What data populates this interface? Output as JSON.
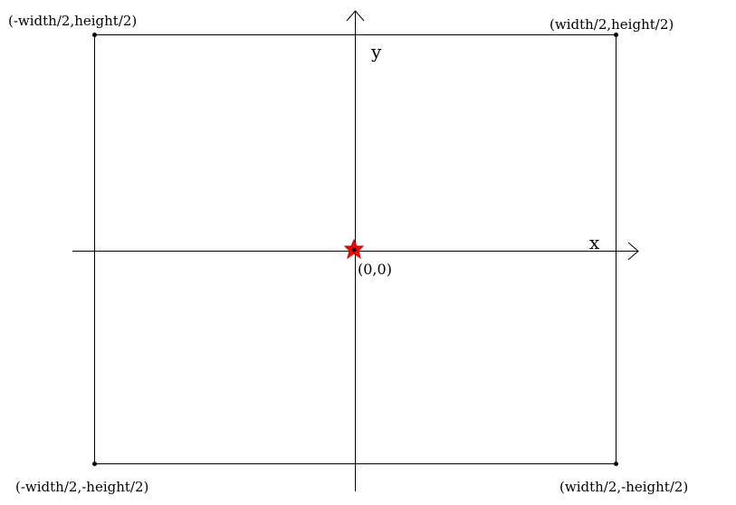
{
  "diagram": {
    "axes": {
      "x_label": "x",
      "y_label": "y"
    },
    "points": {
      "origin": "(0,0)",
      "top_left": "(-width/2,height/2)",
      "top_right": "(width/2,height/2)",
      "bottom_left": "(-width/2,-height/2)",
      "bottom_right": "(width/2,-height/2)"
    },
    "colors": {
      "line": "#000000",
      "origin_marker": "#ff0000"
    }
  }
}
